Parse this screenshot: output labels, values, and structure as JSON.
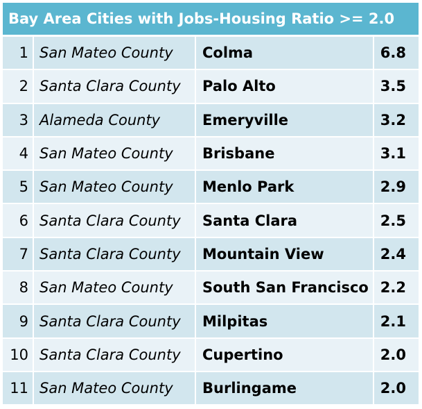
{
  "title": "Bay Area Cities with Jobs-Housing Ratio >= 2.0",
  "rows": [
    {
      "rank": "1",
      "county": "San Mateo County",
      "city": "Colma",
      "ratio": "6.8"
    },
    {
      "rank": "2",
      "county": "Santa Clara County",
      "city": "Palo Alto",
      "ratio": "3.5"
    },
    {
      "rank": "3",
      "county": "Alameda County",
      "city": "Emeryville",
      "ratio": "3.2"
    },
    {
      "rank": "4",
      "county": "San Mateo County",
      "city": "Brisbane",
      "ratio": "3.1"
    },
    {
      "rank": "5",
      "county": "San Mateo County",
      "city": "Menlo Park",
      "ratio": "2.9"
    },
    {
      "rank": "6",
      "county": "Santa Clara County",
      "city": "Santa Clara",
      "ratio": "2.5"
    },
    {
      "rank": "7",
      "county": "Santa Clara County",
      "city": "Mountain View",
      "ratio": "2.4"
    },
    {
      "rank": "8",
      "county": "San Mateo County",
      "city": "South San Francisco",
      "ratio": "2.2"
    },
    {
      "rank": "9",
      "county": "Santa Clara County",
      "city": "Milpitas",
      "ratio": "2.1"
    },
    {
      "rank": "10",
      "county": "Santa Clara County",
      "city": "Cupertino",
      "ratio": "2.0"
    },
    {
      "rank": "11",
      "county": "San Mateo County",
      "city": "Burlingame",
      "ratio": "2.0"
    }
  ],
  "colors": {
    "header": "#5BB6D0",
    "row_odd": "#D2E6EE",
    "row_even": "#E9F2F7"
  }
}
